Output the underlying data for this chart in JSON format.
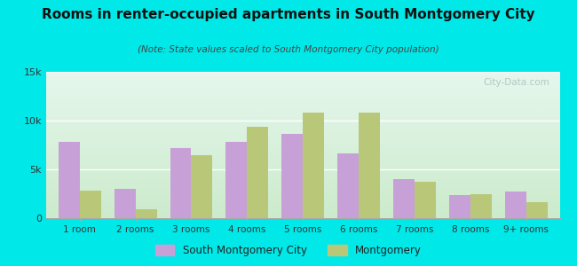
{
  "title": "Rooms in renter-occupied apartments in South Montgomery City",
  "subtitle": "(Note: State values scaled to South Montgomery City population)",
  "categories": [
    "1 room",
    "2 rooms",
    "3 rooms",
    "4 rooms",
    "5 rooms",
    "6 rooms",
    "7 rooms",
    "8 rooms",
    "9+ rooms"
  ],
  "south_montgomery": [
    7800,
    3000,
    7200,
    7800,
    8600,
    6600,
    4000,
    2400,
    2700
  ],
  "montgomery": [
    2800,
    900,
    6500,
    9400,
    10800,
    10800,
    3700,
    2500,
    1600
  ],
  "color_smc": "#c8a0d8",
  "color_mont": "#b8c878",
  "background_outer": "#00e8e8",
  "ylim": [
    0,
    15000
  ],
  "yticks": [
    0,
    5000,
    10000,
    15000
  ],
  "ytick_labels": [
    "0",
    "5k",
    "10k",
    "15k"
  ],
  "legend_label_smc": "South Montgomery City",
  "legend_label_mont": "Montgomery",
  "bar_width": 0.38,
  "watermark": "City-Data.com"
}
